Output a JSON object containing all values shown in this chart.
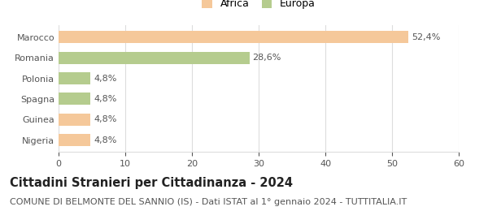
{
  "categories": [
    "Nigeria",
    "Guinea",
    "Spagna",
    "Polonia",
    "Romania",
    "Marocco"
  ],
  "values": [
    4.8,
    4.8,
    4.8,
    4.8,
    28.6,
    52.4
  ],
  "colors": [
    "#f5c89a",
    "#f5c89a",
    "#b5cc8e",
    "#b5cc8e",
    "#b5cc8e",
    "#f5c89a"
  ],
  "labels": [
    "4,8%",
    "4,8%",
    "4,8%",
    "4,8%",
    "28,6%",
    "52,4%"
  ],
  "legend_labels": [
    "Africa",
    "Europa"
  ],
  "legend_colors": [
    "#f5c89a",
    "#b5cc8e"
  ],
  "xlim": [
    0,
    60
  ],
  "xticks": [
    0,
    10,
    20,
    30,
    40,
    50,
    60
  ],
  "title": "Cittadini Stranieri per Cittadinanza - 2024",
  "subtitle": "COMUNE DI BELMONTE DEL SANNIO (IS) - Dati ISTAT al 1° gennaio 2024 - TUTTITALIA.IT",
  "title_fontsize": 10.5,
  "subtitle_fontsize": 8,
  "label_fontsize": 8,
  "tick_fontsize": 8,
  "background_color": "#ffffff",
  "grid_color": "#dddddd"
}
